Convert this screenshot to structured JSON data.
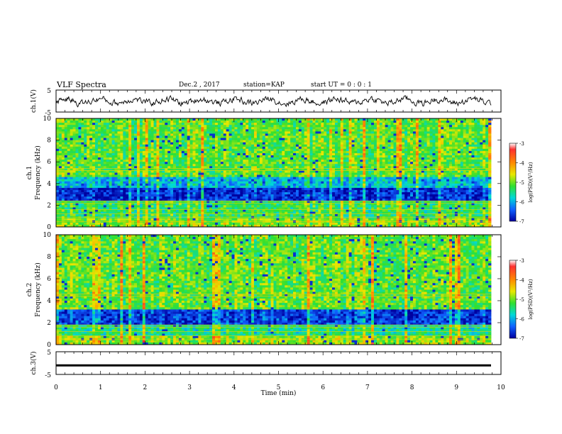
{
  "header": {
    "title": "VLF Spectra",
    "date": "Dec.2 , 2017",
    "station": "station=KAP",
    "start": "start UT = 0 : 0 : 1"
  },
  "chart_data": [
    {
      "type": "line",
      "panel": "ch1-waveform",
      "ylabel": "ch.1(V)",
      "ylim": [
        -5,
        5
      ],
      "yticks": [
        "5",
        "-5"
      ],
      "xlim": [
        0,
        9.83
      ],
      "description_values": {
        "typical_range": [
          -3,
          3
        ]
      }
    },
    {
      "type": "heatmap",
      "panel": "ch1-spectrogram",
      "ylabel": "ch.1\nFrequency (kHz)",
      "ylim": [
        0,
        10
      ],
      "yticks": [
        "0",
        "2",
        "4",
        "6",
        "8",
        "10"
      ],
      "colorbar": {
        "label": "log(PSD)(V²/Hz)",
        "range": [
          -7,
          -3
        ],
        "ticks": [
          "-3",
          "-4",
          "-5",
          "-6",
          "-7"
        ]
      }
    },
    {
      "type": "heatmap",
      "panel": "ch2-spectrogram",
      "ylabel": "ch.2\nFrequency (kHz)",
      "ylim": [
        0,
        10
      ],
      "yticks": [
        "0",
        "2",
        "4",
        "6",
        "8",
        "10"
      ],
      "colorbar": {
        "label": "log(PSD)(V²/Hz)",
        "range": [
          -7,
          -3
        ],
        "ticks": [
          "-3",
          "-4",
          "-5",
          "-6",
          "-7"
        ]
      }
    },
    {
      "type": "line",
      "panel": "ch3-waveform",
      "ylabel": "ch.3(V)",
      "ylim": [
        -5,
        5
      ],
      "yticks": [
        "5",
        "-5"
      ],
      "level": -1,
      "xlabel": "Time (min)",
      "xlim": [
        0,
        10
      ],
      "xticks": [
        "0",
        "1",
        "2",
        "3",
        "4",
        "5",
        "6",
        "7",
        "8",
        "9",
        "10"
      ]
    }
  ],
  "colors": {
    "axis": "#000000",
    "trace": "#000000"
  }
}
